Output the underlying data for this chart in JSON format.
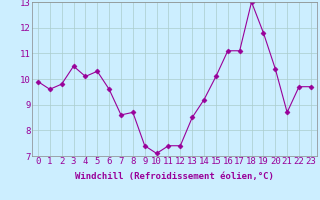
{
  "x": [
    0,
    1,
    2,
    3,
    4,
    5,
    6,
    7,
    8,
    9,
    10,
    11,
    12,
    13,
    14,
    15,
    16,
    17,
    18,
    19,
    20,
    21,
    22,
    23
  ],
  "y": [
    9.9,
    9.6,
    9.8,
    10.5,
    10.1,
    10.3,
    9.6,
    8.6,
    8.7,
    7.4,
    7.1,
    7.4,
    7.4,
    8.5,
    9.2,
    10.1,
    11.1,
    11.1,
    13.0,
    11.8,
    10.4,
    8.7,
    9.7,
    9.7
  ],
  "line_color": "#990099",
  "marker": "D",
  "marker_size": 2.5,
  "bg_color": "#cceeff",
  "grid_color": "#aacccc",
  "xlabel": "Windchill (Refroidissement éolien,°C)",
  "xlabel_fontsize": 6.5,
  "tick_fontsize": 6.5,
  "ylim": [
    7,
    13
  ],
  "xlim": [
    -0.5,
    23.5
  ],
  "yticks": [
    7,
    8,
    9,
    10,
    11,
    12,
    13
  ],
  "xticks": [
    0,
    1,
    2,
    3,
    4,
    5,
    6,
    7,
    8,
    9,
    10,
    11,
    12,
    13,
    14,
    15,
    16,
    17,
    18,
    19,
    20,
    21,
    22,
    23
  ]
}
